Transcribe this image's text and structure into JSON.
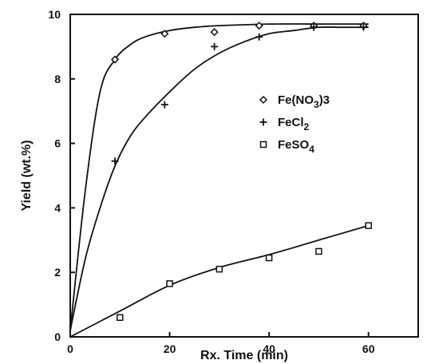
{
  "chart_data": {
    "type": "scatter",
    "xlabel": "Rx. Time (min)",
    "ylabel": "Yield (wt.%)",
    "xlim": [
      0,
      70
    ],
    "ylim": [
      0,
      10
    ],
    "x_ticks": [
      "0",
      "20",
      "40",
      "60"
    ],
    "y_ticks": [
      "0",
      "2",
      "4",
      "6",
      "8",
      "10"
    ],
    "x_tick_values": [
      0,
      20,
      40,
      60
    ],
    "y_tick_values": [
      0,
      2,
      4,
      6,
      8,
      10
    ],
    "grid": false,
    "legend_position": "right-center",
    "series": [
      {
        "key": "fe_nitrate",
        "legend_main": "Fe(NO",
        "legend_sub": "3",
        "legend_tail": ")3",
        "marker": "diamond",
        "points": [
          [
            9,
            8.6
          ],
          [
            19,
            9.4
          ],
          [
            29,
            9.45
          ],
          [
            38,
            9.65
          ],
          [
            49,
            9.65
          ],
          [
            59,
            9.65
          ]
        ],
        "fit": [
          [
            0,
            0.2
          ],
          [
            3,
            4.5
          ],
          [
            6,
            7.6
          ],
          [
            9,
            8.6
          ],
          [
            12,
            9.05
          ],
          [
            15,
            9.3
          ],
          [
            20,
            9.5
          ],
          [
            25,
            9.6
          ],
          [
            30,
            9.65
          ],
          [
            40,
            9.7
          ],
          [
            50,
            9.7
          ],
          [
            60,
            9.7
          ]
        ]
      },
      {
        "key": "fe_chloride",
        "legend_main": "FeCl",
        "legend_sub": "2",
        "legend_tail": "",
        "marker": "plus",
        "points": [
          [
            9,
            5.45
          ],
          [
            19,
            7.2
          ],
          [
            29,
            9.0
          ],
          [
            38,
            9.3
          ],
          [
            49,
            9.6
          ],
          [
            59,
            9.6
          ]
        ],
        "fit": [
          [
            0,
            0.2
          ],
          [
            3,
            2.4
          ],
          [
            6,
            4.0
          ],
          [
            9,
            5.3
          ],
          [
            12,
            6.2
          ],
          [
            15,
            6.8
          ],
          [
            20,
            7.6
          ],
          [
            25,
            8.3
          ],
          [
            30,
            8.8
          ],
          [
            35,
            9.15
          ],
          [
            40,
            9.4
          ],
          [
            45,
            9.5
          ],
          [
            50,
            9.6
          ],
          [
            55,
            9.6
          ],
          [
            60,
            9.6
          ]
        ]
      },
      {
        "key": "fe_sulfate",
        "legend_main": "FeSO",
        "legend_sub": "4",
        "legend_tail": "",
        "marker": "square",
        "points": [
          [
            10,
            0.6
          ],
          [
            20,
            1.65
          ],
          [
            30,
            2.1
          ],
          [
            40,
            2.45
          ],
          [
            50,
            2.65
          ],
          [
            60,
            3.45
          ]
        ],
        "fit": [
          [
            0,
            0.0
          ],
          [
            10,
            0.8
          ],
          [
            20,
            1.6
          ],
          [
            30,
            2.15
          ],
          [
            40,
            2.55
          ],
          [
            50,
            3.0
          ],
          [
            60,
            3.45
          ]
        ]
      }
    ]
  }
}
